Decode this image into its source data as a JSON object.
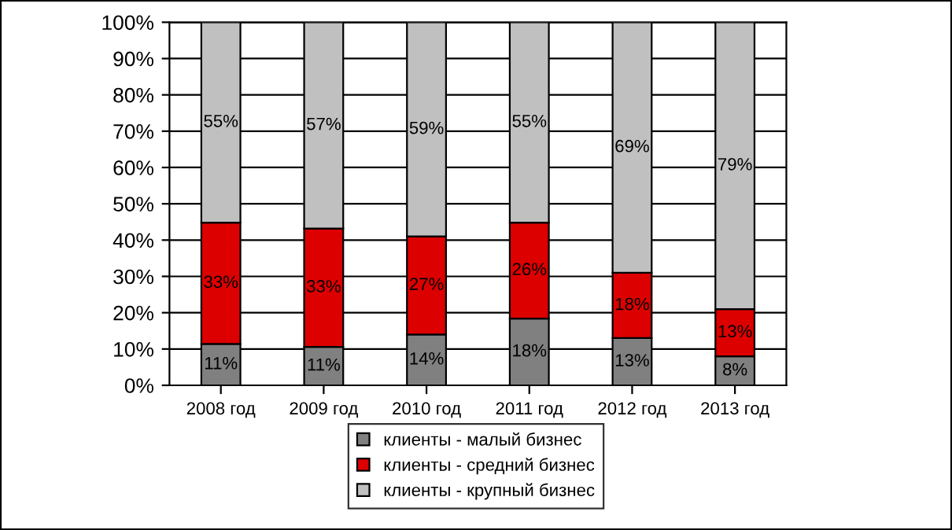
{
  "chart_data": {
    "type": "bar",
    "stacked": true,
    "categories": [
      "2008 год",
      "2009 год",
      "2010 год",
      "2011 год",
      "2012 год",
      "2013 год"
    ],
    "series": [
      {
        "name": "клиенты - малый бизнес",
        "color": "#808080",
        "values": [
          11.4,
          10.6,
          14,
          18.4,
          13,
          8
        ],
        "value_labels": [
          "11%",
          "11%",
          "14%",
          "18%",
          "13%",
          "8%"
        ]
      },
      {
        "name": "клиенты - средний бизнес",
        "color": "#dd0000",
        "values": [
          33.4,
          32.6,
          27,
          26.4,
          18,
          13
        ],
        "value_labels": [
          "33%",
          "33%",
          "27%",
          "26%",
          "18%",
          "13%"
        ]
      },
      {
        "name": "клиенты - крупный бизнес",
        "color": "#c0c0c0",
        "values": [
          55.2,
          56.8,
          59,
          55.2,
          69,
          79
        ],
        "value_labels": [
          "55%",
          "57%",
          "59%",
          "55%",
          "69%",
          "79%"
        ]
      }
    ],
    "ylim": [
      0,
      100
    ],
    "yticks": [
      {
        "value": 0,
        "label": "0%"
      },
      {
        "value": 10,
        "label": "10%"
      },
      {
        "value": 20,
        "label": "20%"
      },
      {
        "value": 30,
        "label": "30%"
      },
      {
        "value": 40,
        "label": "40%"
      },
      {
        "value": 50,
        "label": "50%"
      },
      {
        "value": 60,
        "label": "60%"
      },
      {
        "value": 70,
        "label": "70%"
      },
      {
        "value": 80,
        "label": "80%"
      },
      {
        "value": 90,
        "label": "90%"
      },
      {
        "value": 100,
        "label": "100%"
      }
    ],
    "grid": "y",
    "legend": "bottom"
  }
}
